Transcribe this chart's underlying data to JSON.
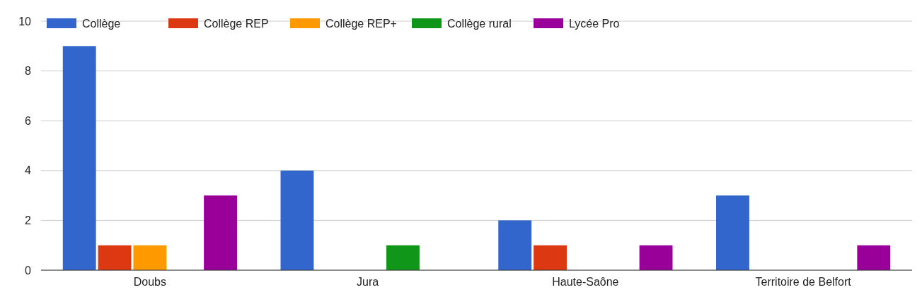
{
  "chart_data": {
    "type": "bar",
    "categories": [
      "Doubs",
      "Jura",
      "Haute-Saône",
      "Territoire de Belfort"
    ],
    "series": [
      {
        "name": "Collège",
        "color": "#3366cc",
        "values": [
          9,
          4,
          2,
          3
        ]
      },
      {
        "name": "Collège REP",
        "color": "#dc3912",
        "values": [
          1,
          0,
          1,
          0
        ]
      },
      {
        "name": "Collège REP+",
        "color": "#ff9900",
        "values": [
          1,
          0,
          0,
          0
        ]
      },
      {
        "name": "Collège rural",
        "color": "#109618",
        "values": [
          0,
          1,
          0,
          0
        ]
      },
      {
        "name": "Lycée Pro",
        "color": "#990099",
        "values": [
          3,
          0,
          1,
          1
        ]
      }
    ],
    "ylim": [
      0,
      10
    ],
    "yticks": [
      0,
      2,
      4,
      6,
      8,
      10
    ],
    "grid": "y",
    "legend": "top left"
  }
}
